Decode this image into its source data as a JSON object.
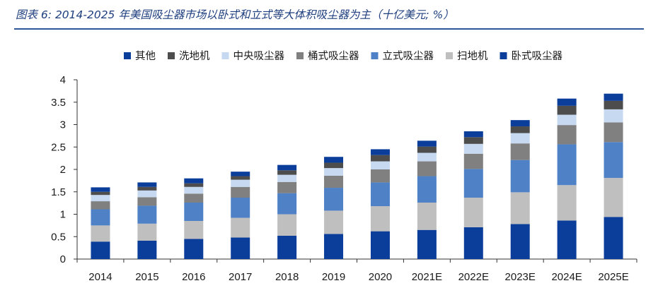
{
  "figure": {
    "title": "图表 6:  2014-2025 年美国吸尘器市场以卧式和立式等大体积吸尘器为主（十亿美元; %）"
  },
  "colors": {
    "title": "#1f3f7f",
    "rule": "#2e5597"
  },
  "chart_data": {
    "type": "bar",
    "stacked": true,
    "categories": [
      "2014",
      "2015",
      "2016",
      "2017",
      "2018",
      "2019",
      "2020",
      "2021E",
      "2022E",
      "2023E",
      "2024E",
      "2025E"
    ],
    "ylim": [
      0,
      4
    ],
    "yticks": [
      0,
      0.5,
      1,
      1.5,
      2,
      2.5,
      3,
      3.5,
      4
    ],
    "legend_position": "top",
    "grid": false,
    "series": [
      {
        "name": "卧式吸尘器",
        "color": "#0b3d9a",
        "values": [
          0.39,
          0.41,
          0.45,
          0.48,
          0.52,
          0.56,
          0.62,
          0.65,
          0.71,
          0.78,
          0.86,
          0.94
        ]
      },
      {
        "name": "扫地机",
        "color": "#bfbfbf",
        "values": [
          0.36,
          0.38,
          0.4,
          0.44,
          0.48,
          0.52,
          0.56,
          0.61,
          0.66,
          0.71,
          0.79,
          0.87
        ]
      },
      {
        "name": "立式吸尘器",
        "color": "#4f81c7",
        "values": [
          0.36,
          0.4,
          0.41,
          0.45,
          0.47,
          0.51,
          0.53,
          0.59,
          0.64,
          0.72,
          0.91,
          0.8
        ]
      },
      {
        "name": "桶式吸尘器",
        "color": "#808080",
        "values": [
          0.18,
          0.19,
          0.2,
          0.24,
          0.25,
          0.27,
          0.29,
          0.33,
          0.34,
          0.37,
          0.43,
          0.44
        ]
      },
      {
        "name": "中央吸尘器",
        "color": "#c6d9f1",
        "values": [
          0.14,
          0.15,
          0.15,
          0.16,
          0.16,
          0.17,
          0.18,
          0.19,
          0.22,
          0.23,
          0.23,
          0.29
        ]
      },
      {
        "name": "洗地机",
        "color": "#4d4d4d",
        "values": [
          0.07,
          0.08,
          0.08,
          0.08,
          0.1,
          0.12,
          0.14,
          0.14,
          0.15,
          0.15,
          0.2,
          0.19
        ]
      },
      {
        "name": "其他",
        "color": "#0b3d9a",
        "values": [
          0.1,
          0.1,
          0.11,
          0.1,
          0.12,
          0.13,
          0.13,
          0.13,
          0.13,
          0.14,
          0.16,
          0.16
        ]
      }
    ],
    "legend_order": [
      "其他",
      "洗地机",
      "中央吸尘器",
      "桶式吸尘器",
      "立式吸尘器",
      "扫地机",
      "卧式吸尘器"
    ]
  }
}
